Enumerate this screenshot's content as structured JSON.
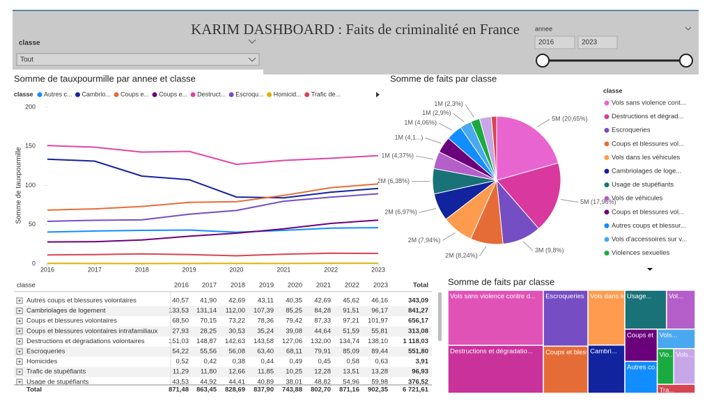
{
  "header": {
    "title": "KARIM  DASHBOARD : Faits de criminalité en France"
  },
  "filters": {
    "classe": {
      "label": "classe",
      "value": "Tout"
    },
    "annee": {
      "label": "annee",
      "start": "2016",
      "end": "2023"
    }
  },
  "chart_data": [
    {
      "type": "line",
      "title": "Somme de tauxpourmille par annee et classe",
      "y_label": "Somme de tauxpourmille",
      "legend_title": "classe",
      "x": [
        2016,
        2017,
        2018,
        2019,
        2020,
        2021,
        2022,
        2023
      ],
      "xlim": [
        2016,
        2023
      ],
      "xticks": [
        2016,
        2017,
        2018,
        2019,
        2020,
        2021,
        2022,
        2023
      ],
      "ylim": [
        0,
        200
      ],
      "yticks": [
        0,
        50,
        100,
        150,
        200
      ],
      "grid": false,
      "series": [
        {
          "name": "Autres c...",
          "color": "#118DFF",
          "values": [
            40.57,
            41.9,
            42.69,
            43.11,
            40.35,
            42.69,
            45.62,
            46.16
          ]
        },
        {
          "name": "Cambrio...",
          "color": "#12239E",
          "values": [
            133.53,
            131.14,
            112.0,
            107.39,
            85.25,
            84.28,
            91.51,
            96.17
          ]
        },
        {
          "name": "Coups e...",
          "color": "#E66C37",
          "values": [
            68.5,
            70.15,
            73.22,
            78.36,
            79.42,
            87.33,
            97.21,
            101.97
          ]
        },
        {
          "name": "Coups e...",
          "color": "#6B007B",
          "values": [
            27.93,
            28.25,
            30.53,
            35.24,
            39.08,
            44.64,
            51.59,
            55.81
          ]
        },
        {
          "name": "Destruct...",
          "color": "#E044A7",
          "values": [
            151.03,
            148.87,
            142.63,
            143.58,
            127.06,
            132.0,
            134.74,
            138.1
          ]
        },
        {
          "name": "Escroqu...",
          "color": "#744EC2",
          "values": [
            54.22,
            55.56,
            56.08,
            63.4,
            68.11,
            79.91,
            85.09,
            89.44
          ]
        },
        {
          "name": "Homicid...",
          "color": "#D9B300",
          "values": [
            0.52,
            0.42,
            0.38,
            0.44,
            0.49,
            0.45,
            0.58,
            0.63
          ]
        },
        {
          "name": "Trafic de...",
          "color": "#D64550",
          "values": [
            11.29,
            11.8,
            12.66,
            11.85,
            10.25,
            12.28,
            13.51,
            13.28
          ]
        }
      ]
    },
    {
      "type": "pie",
      "title": "Somme de faits par classe",
      "legend_title": "classe",
      "categories": [
        "Vols sans violence cont...",
        "Destructions et dégrad...",
        "Escroqueries",
        "Coups et blessures vol...",
        "Vols dans les véhicules",
        "Cambriolages de loge...",
        "Usage de stupéfiants",
        "Vols de véhicules",
        "Coups et blessures vol...",
        "Autres coups et blessur...",
        "Vols d'accessoires sur v...",
        "Violences sexuelles",
        null,
        null
      ],
      "values": [
        20.65,
        17.96,
        9.8,
        8.24,
        7.94,
        6.97,
        6.38,
        4.37,
        4.1,
        4.06,
        2.9,
        2.3,
        3.0,
        1.33
      ],
      "value_labels": [
        "5M (20,65%)",
        "5M (17,96%)",
        "3M (9,8%)",
        "2M (8,24%)",
        "2M (7,94%)",
        "2M (6,97%)",
        "2M (6,38%)",
        "1M (4,37%)",
        "1M (4,1...)",
        "1M (4,06%)",
        "1M (2,9%)",
        "1M (2,3%)",
        null,
        null
      ],
      "colors": [
        "#E864CF",
        "#D9389E",
        "#744EC2",
        "#E66C37",
        "#FE9B4F",
        "#12239E",
        "#197278",
        "#B45FC9",
        "#6B007B",
        "#118DFF",
        "#4AA8F0",
        "#1AAB40",
        "#C7A7E8",
        "#D64550"
      ]
    },
    {
      "type": "treemap",
      "title": "Somme de faits par classe",
      "categories": [
        "Vols sans violence contre d...",
        "Destructions et dégradatio...",
        "Escroqueries",
        "Coups et blessur...",
        "Vols dans les véh...",
        "Cambri...",
        "Usage...",
        "Vol...",
        "Coups et ...",
        "Autres co...",
        "Vols...",
        "Vio...",
        "Vols...",
        "Tra..."
      ],
      "values": [
        20.65,
        17.96,
        9.8,
        8.24,
        7.94,
        6.97,
        6.38,
        4.37,
        4.1,
        4.06,
        2.9,
        2.3,
        3.0,
        1.33
      ],
      "colors": [
        "#E052B6",
        "#C9329A",
        "#744EC2",
        "#E66C37",
        "#FE9B4F",
        "#12239E",
        "#197278",
        "#B45FC9",
        "#6B007B",
        "#118DFF",
        "#4AA8F0",
        "#1AAB40",
        "#C7A7E8",
        "#D64550"
      ]
    }
  ],
  "table": {
    "columns": [
      "classe",
      "2016",
      "2017",
      "2018",
      "2019",
      "2020",
      "2021",
      "2022",
      "2023",
      "Total"
    ],
    "rows": [
      [
        "Autres coups et blessures volontaires",
        "40,57",
        "41,90",
        "42,69",
        "43,11",
        "40,35",
        "42,69",
        "45,62",
        "46,16",
        "343,09"
      ],
      [
        "Cambriolages de logement",
        "133,53",
        "131,14",
        "112,00",
        "107,39",
        "85,25",
        "84,28",
        "91,51",
        "96,17",
        "841,27"
      ],
      [
        "Coups et blessures volontaires",
        "68,50",
        "70,15",
        "73,22",
        "78,36",
        "79,42",
        "87,33",
        "97,21",
        "101,97",
        "656,17"
      ],
      [
        "Coups et blessures volontaires intrafamiliaux",
        "27,93",
        "28,25",
        "30,53",
        "35,24",
        "39,08",
        "44,64",
        "51,59",
        "55,81",
        "313,08"
      ],
      [
        "Destructions et dégradations volontaires",
        "151,03",
        "148,87",
        "142,63",
        "143,58",
        "127,06",
        "132,00",
        "134,74",
        "138,10",
        "1 118,03"
      ],
      [
        "Escroqueries",
        "54,22",
        "55,56",
        "56,08",
        "63,40",
        "68,11",
        "79,91",
        "85,09",
        "89,44",
        "551,80"
      ],
      [
        "Homicides",
        "0,52",
        "0,42",
        "0,38",
        "0,44",
        "0,49",
        "0,45",
        "0,58",
        "0,63",
        "3,91"
      ],
      [
        "Trafic de stupéfiants",
        "11,29",
        "11,80",
        "12,66",
        "11,85",
        "10,25",
        "12,28",
        "13,51",
        "13,28",
        "96,93"
      ],
      [
        "Usage de stupéfiants",
        "43,53",
        "44,92",
        "44,41",
        "40,89",
        "38,01",
        "48,82",
        "54,96",
        "59,98",
        "376,52"
      ]
    ],
    "total": [
      "Total",
      "871,48",
      "863,45",
      "828,69",
      "837,90",
      "743,88",
      "802,70",
      "871,16",
      "902,35",
      "6 721,61"
    ]
  }
}
